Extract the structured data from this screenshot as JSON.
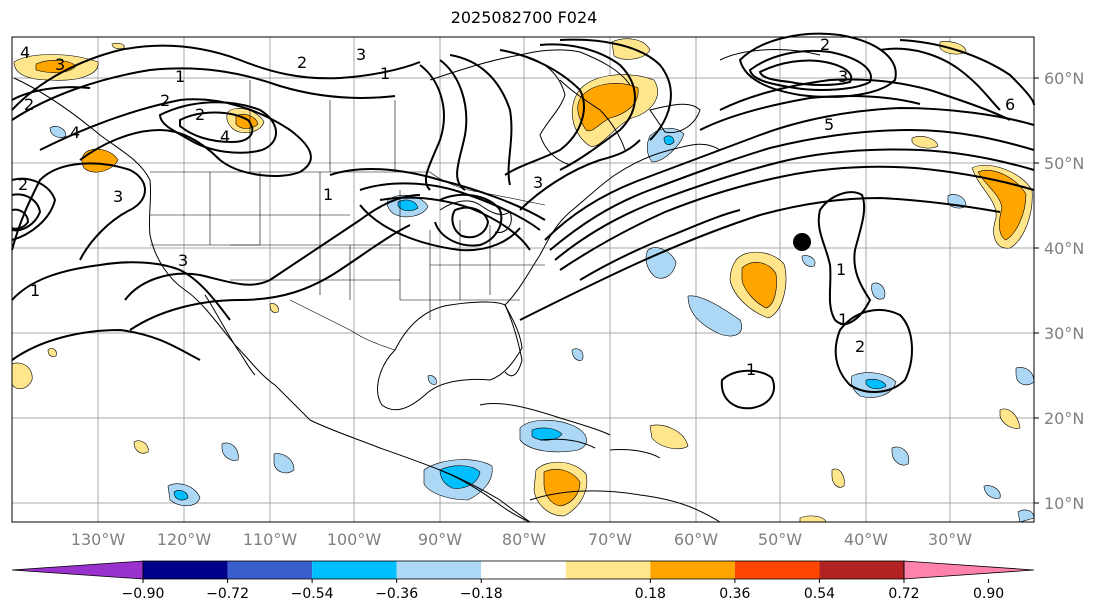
{
  "title": "2025082700 F024",
  "lon_labels": [
    "130°W",
    "120°W",
    "110°W",
    "100°W",
    "90°W",
    "80°W",
    "70°W",
    "60°W",
    "50°W",
    "40°W",
    "30°W"
  ],
  "lat_labels": [
    "60°N",
    "50°N",
    "40°N",
    "30°N",
    "20°N",
    "10°N"
  ],
  "colorbar": {
    "ticks": [
      "−0.90",
      "−0.72",
      "−0.54",
      "−0.36",
      "−0.18",
      "0.18",
      "0.36",
      "0.54",
      "0.72",
      "0.90"
    ],
    "colors": [
      "#9932CC",
      "#00008B",
      "#3A5FCD",
      "#00BFFF",
      "#ADD8F5",
      "#FFFFFF",
      "#FFE68C",
      "#FFA500",
      "#FF4500",
      "#B22222",
      "#FF82AB"
    ]
  },
  "contour_labels": [
    "4",
    "3",
    "2",
    "1",
    "3",
    "2",
    "1",
    "2",
    "2",
    "4",
    "1",
    "4",
    "3",
    "2",
    "1",
    "2",
    "3",
    "1",
    "3",
    "5",
    "6",
    "1",
    "2",
    "1",
    "3"
  ],
  "marker": "storm-position"
}
